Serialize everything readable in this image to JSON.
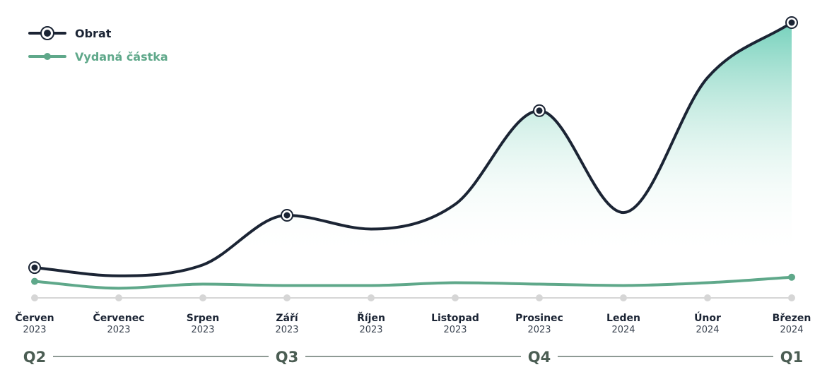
{
  "chart_data": {
    "type": "line",
    "title": "",
    "xlabel": "",
    "ylabel": "",
    "grid": false,
    "legend_position": "top-left",
    "y_axis_shown": false,
    "ylim": [
      0,
      100
    ],
    "categories": [
      {
        "month": "Červen",
        "year": "2023"
      },
      {
        "month": "Červenec",
        "year": "2023"
      },
      {
        "month": "Srpen",
        "year": "2023"
      },
      {
        "month": "Září",
        "year": "2023"
      },
      {
        "month": "Říjen",
        "year": "2023"
      },
      {
        "month": "Listopad",
        "year": "2023"
      },
      {
        "month": "Prosinec",
        "year": "2023"
      },
      {
        "month": "Leden",
        "year": "2024"
      },
      {
        "month": "Únor",
        "year": "2024"
      },
      {
        "month": "Březen",
        "year": "2024"
      }
    ],
    "quarters": [
      {
        "label": "Q2",
        "category_index": 0
      },
      {
        "label": "Q3",
        "category_index": 3
      },
      {
        "label": "Q4",
        "category_index": 6
      },
      {
        "label": "Q1",
        "category_index": 9
      }
    ],
    "series": [
      {
        "name": "Obrat",
        "color": "#1b2434",
        "values": [
          11,
          8,
          12,
          30,
          25,
          34,
          68,
          31,
          80,
          100
        ],
        "marked_points": [
          0,
          3,
          6,
          9
        ],
        "area_fill_color": "#6fcfb9"
      },
      {
        "name": "Vydaná částka",
        "color": "#5fa88a",
        "values": [
          6,
          3.5,
          5,
          4.5,
          4.5,
          5.5,
          5,
          4.5,
          5.5,
          7.5
        ],
        "marked_points": [
          0,
          9
        ]
      }
    ],
    "baseline_color": "#d6d6d6",
    "quarter_line_color": "#4b5d53"
  }
}
